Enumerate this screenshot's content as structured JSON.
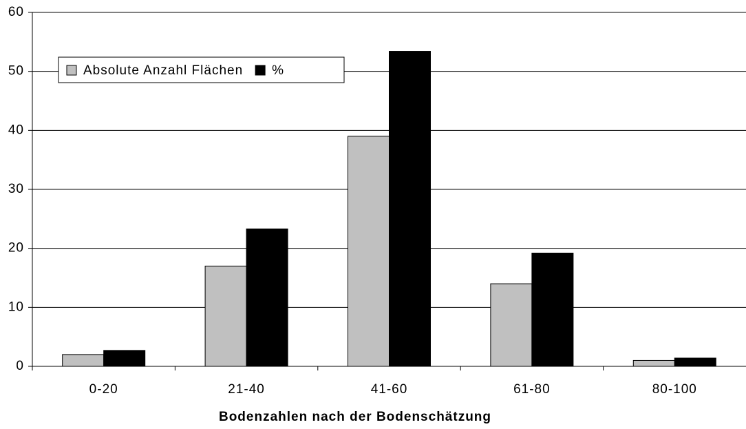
{
  "chart_data": {
    "type": "bar",
    "x_label": "Bodenzahlen nach der Bodenschätzung",
    "categories": [
      "0-20",
      "21-40",
      "41-60",
      "61-80",
      "80-100"
    ],
    "series": [
      {
        "name": "Absolute Anzahl Flächen",
        "color": "#c0c0c0",
        "values": [
          2,
          17,
          39,
          14,
          1
        ]
      },
      {
        "name": "%",
        "color": "#000000",
        "values": [
          2.7,
          23.3,
          53.4,
          19.2,
          1.4
        ]
      }
    ],
    "ylim": [
      0,
      60
    ],
    "yticks": [
      0,
      10,
      20,
      30,
      40,
      50,
      60
    ],
    "grid": true,
    "legend": "upper left"
  }
}
